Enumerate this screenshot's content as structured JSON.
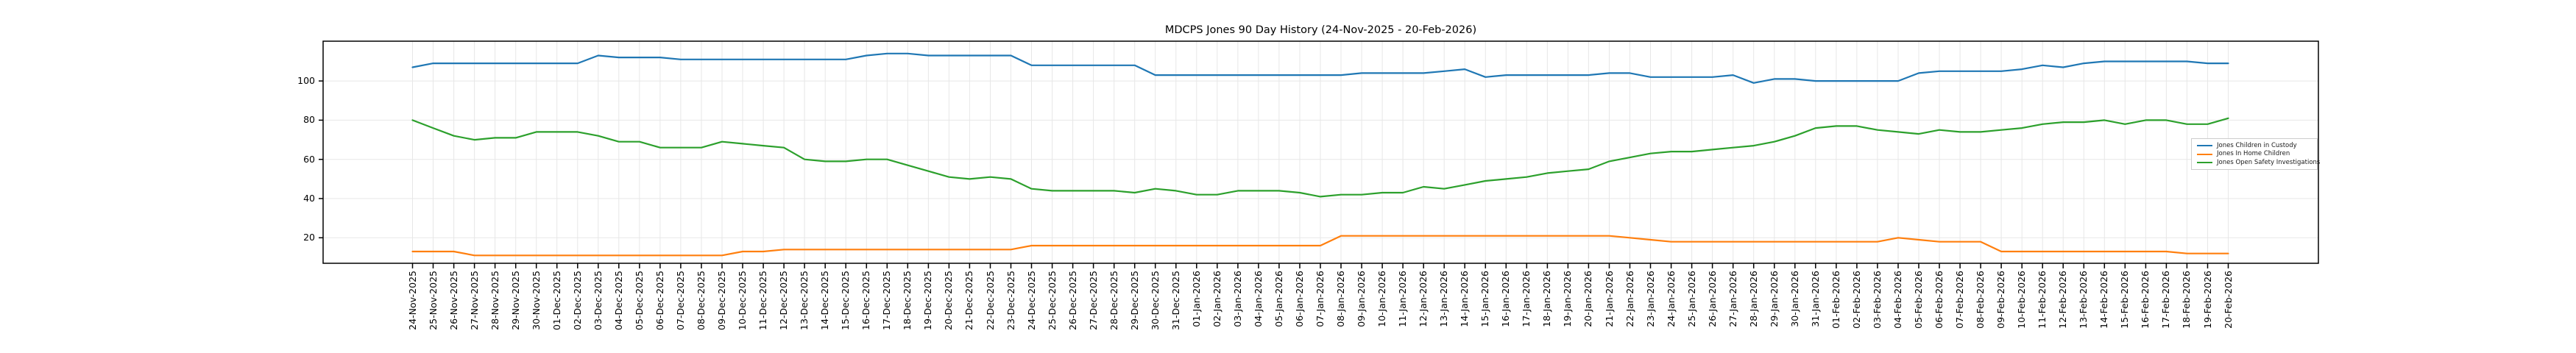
{
  "chart_data": {
    "type": "line",
    "title": "MDCPS Jones 90 Day History (24-Nov-2025 - 20-Feb-2026)",
    "grid": true,
    "legend_position": "center right inside plot",
    "ylim": [
      7,
      120.3
    ],
    "y_ticks": [
      20,
      40,
      60,
      80,
      100
    ],
    "colors": {
      "grid": "#e7e7e7",
      "spine": "#000000",
      "legend_border": "#cccccc"
    },
    "x_tick_labels": [
      "24-Nov-2025",
      "25-Nov-2025",
      "26-Nov-2025",
      "27-Nov-2025",
      "28-Nov-2025",
      "29-Nov-2025",
      "30-Nov-2025",
      "01-Dec-2025",
      "02-Dec-2025",
      "03-Dec-2025",
      "04-Dec-2025",
      "05-Dec-2025",
      "06-Dec-2025",
      "07-Dec-2025",
      "08-Dec-2025",
      "09-Dec-2025",
      "10-Dec-2025",
      "11-Dec-2025",
      "12-Dec-2025",
      "13-Dec-2025",
      "14-Dec-2025",
      "15-Dec-2025",
      "16-Dec-2025",
      "17-Dec-2025",
      "18-Dec-2025",
      "19-Dec-2025",
      "20-Dec-2025",
      "21-Dec-2025",
      "22-Dec-2025",
      "23-Dec-2025",
      "24-Dec-2025",
      "25-Dec-2025",
      "26-Dec-2025",
      "27-Dec-2025",
      "28-Dec-2025",
      "29-Dec-2025",
      "30-Dec-2025",
      "31-Dec-2025",
      "01-Jan-2026",
      "02-Jan-2026",
      "03-Jan-2026",
      "04-Jan-2026",
      "05-Jan-2026",
      "06-Jan-2026",
      "07-Jan-2026",
      "08-Jan-2026",
      "09-Jan-2026",
      "10-Jan-2026",
      "11-Jan-2026",
      "12-Jan-2026",
      "13-Jan-2026",
      "14-Jan-2026",
      "15-Jan-2026",
      "16-Jan-2026",
      "17-Jan-2026",
      "18-Jan-2026",
      "19-Jan-2026",
      "20-Jan-2026",
      "21-Jan-2026",
      "22-Jan-2026",
      "23-Jan-2026",
      "24-Jan-2026",
      "25-Jan-2026",
      "26-Jan-2026",
      "27-Jan-2026",
      "28-Jan-2026",
      "29-Jan-2026",
      "30-Jan-2026",
      "31-Jan-2026",
      "01-Feb-2026",
      "02-Feb-2026",
      "03-Feb-2026",
      "04-Feb-2026",
      "05-Feb-2026",
      "06-Feb-2026",
      "07-Feb-2026",
      "08-Feb-2026",
      "09-Feb-2026",
      "10-Feb-2026",
      "11-Feb-2026",
      "12-Feb-2026",
      "13-Feb-2026",
      "14-Feb-2026",
      "15-Feb-2026",
      "16-Feb-2026",
      "17-Feb-2026",
      "18-Feb-2026",
      "19-Feb-2026",
      "20-Feb-2026"
    ],
    "series": [
      {
        "name": "Jones Children in Custody",
        "color": "#1f77b4",
        "values": [
          107,
          109,
          109,
          109,
          109,
          109,
          109,
          109,
          109,
          113,
          112,
          112,
          112,
          111,
          111,
          111,
          111,
          111,
          111,
          111,
          111,
          111,
          113,
          114,
          114,
          113,
          113,
          113,
          113,
          113,
          108,
          108,
          108,
          108,
          108,
          108,
          103,
          103,
          103,
          103,
          103,
          103,
          103,
          103,
          103,
          103,
          104,
          104,
          104,
          104,
          105,
          106,
          102,
          103,
          103,
          103,
          103,
          103,
          104,
          104,
          102,
          102,
          102,
          102,
          103,
          99,
          101,
          101,
          100,
          100,
          100,
          100,
          100,
          104,
          105,
          105,
          105,
          105,
          106,
          108,
          107,
          109,
          110,
          110,
          110,
          110,
          110,
          109,
          109
        ]
      },
      {
        "name": "Jones In Home Children",
        "color": "#ff7f0e",
        "values": [
          13,
          13,
          13,
          11,
          11,
          11,
          11,
          11,
          11,
          11,
          11,
          11,
          11,
          11,
          11,
          11,
          13,
          13,
          14,
          14,
          14,
          14,
          14,
          14,
          14,
          14,
          14,
          14,
          14,
          14,
          16,
          16,
          16,
          16,
          16,
          16,
          16,
          16,
          16,
          16,
          16,
          16,
          16,
          16,
          16,
          21,
          21,
          21,
          21,
          21,
          21,
          21,
          21,
          21,
          21,
          21,
          21,
          21,
          21,
          20,
          19,
          18,
          18,
          18,
          18,
          18,
          18,
          18,
          18,
          18,
          18,
          18,
          20,
          19,
          18,
          18,
          18,
          13,
          13,
          13,
          13,
          13,
          13,
          13,
          13,
          13,
          12,
          12,
          12
        ]
      },
      {
        "name": "Jones Open Safety Investigations",
        "color": "#2ca02c",
        "values": [
          80,
          76,
          72,
          70,
          71,
          71,
          74,
          74,
          74,
          72,
          69,
          69,
          66,
          66,
          66,
          69,
          68,
          67,
          66,
          60,
          59,
          59,
          60,
          60,
          57,
          54,
          51,
          50,
          51,
          50,
          45,
          44,
          44,
          44,
          44,
          43,
          45,
          44,
          42,
          42,
          44,
          44,
          44,
          43,
          41,
          42,
          42,
          43,
          43,
          46,
          45,
          47,
          49,
          50,
          51,
          53,
          54,
          55,
          59,
          61,
          63,
          64,
          64,
          65,
          66,
          67,
          69,
          72,
          76,
          77,
          77,
          75,
          74,
          73,
          75,
          74,
          74,
          75,
          76,
          78,
          79,
          79,
          80,
          78,
          80,
          80,
          78,
          78,
          81
        ]
      }
    ]
  }
}
